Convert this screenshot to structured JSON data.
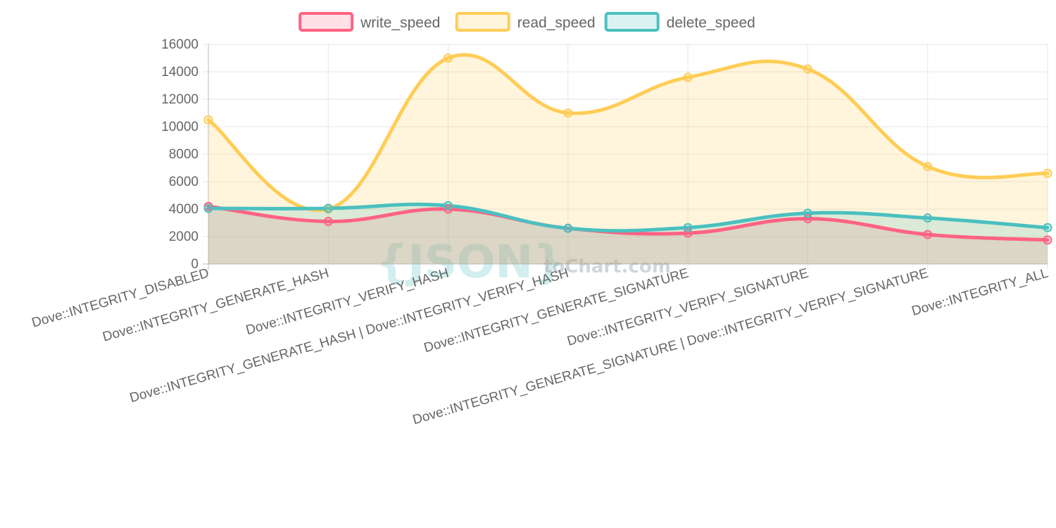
{
  "chart_data": {
    "type": "line",
    "style": "smooth-area",
    "categories": [
      "Dove::INTEGRITY_DISABLED",
      "Dove::INTEGRITY_GENERATE_HASH",
      "Dove::INTEGRITY_VERIFY_HASH",
      "Dove::INTEGRITY_GENERATE_HASH | Dove::INTEGRITY_VERIFY_HASH",
      "Dove::INTEGRITY_GENERATE_SIGNATURE",
      "Dove::INTEGRITY_VERIFY_SIGNATURE",
      "Dove::INTEGRITY_GENERATE_SIGNATURE | Dove::INTEGRITY_VERIFY_SIGNATURE",
      "Dove::INTEGRITY_ALL"
    ],
    "series": [
      {
        "name": "write_speed",
        "color": "#ff6384",
        "fill": "rgba(255,99,132,0.2)",
        "values": [
          4200,
          3100,
          4000,
          2600,
          2250,
          3300,
          2150,
          1750
        ]
      },
      {
        "name": "read_speed",
        "color": "#ffcd56",
        "fill": "rgba(255,205,86,0.2)",
        "values": [
          10500,
          4000,
          15000,
          11000,
          13600,
          14200,
          7100,
          6600
        ]
      },
      {
        "name": "delete_speed",
        "color": "#4bc0c0",
        "fill": "rgba(75,192,192,0.2)",
        "values": [
          4050,
          4050,
          4250,
          2600,
          2650,
          3700,
          3350,
          2650
        ]
      }
    ],
    "ylim": [
      0,
      16000
    ],
    "yticks": [
      "16000",
      "14000",
      "12000",
      "10000",
      "8000",
      "6000",
      "4000",
      "2000",
      "0"
    ],
    "grid": true,
    "legend_position": "top",
    "xlabel": "",
    "ylabel": "",
    "watermark": {
      "brace_text": "{JSON}",
      "suffix_text": "toChart.com"
    }
  }
}
